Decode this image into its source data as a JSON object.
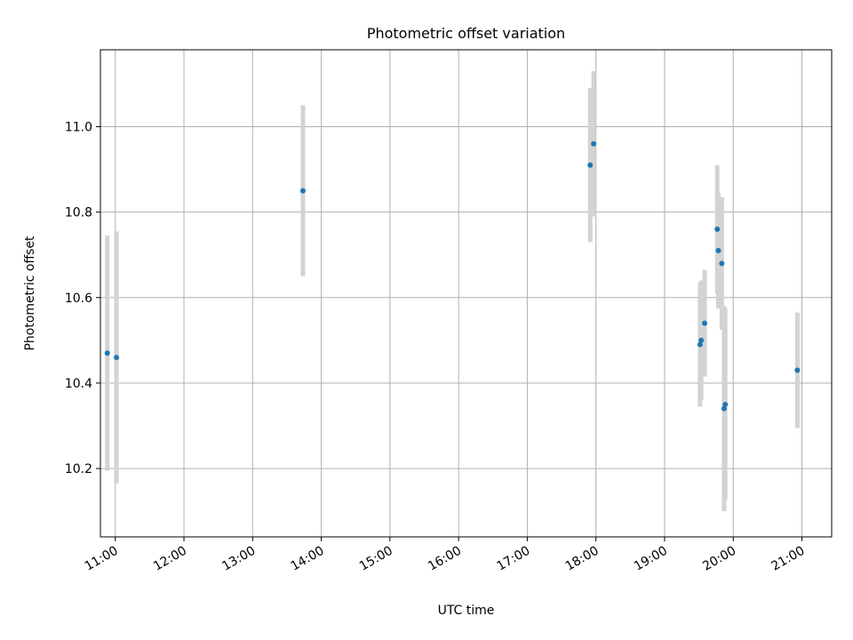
{
  "chart_data": {
    "type": "scatter",
    "title": "Photometric offset variation",
    "xlabel": "UTC time",
    "ylabel": "Photometric offset",
    "x_ticks": [
      "11:00",
      "12:00",
      "13:00",
      "14:00",
      "15:00",
      "16:00",
      "17:00",
      "18:00",
      "19:00",
      "20:00",
      "21:00"
    ],
    "y_ticks": [
      "10.2",
      "10.4",
      "10.6",
      "10.8",
      "11.0"
    ],
    "xlim": [
      "10:47",
      "21:26"
    ],
    "ylim": [
      10.04,
      11.18
    ],
    "grid": true,
    "colors": {
      "point": "#1f77b4",
      "errorbar": "#d3d3d3",
      "grid": "#b0b0b0"
    },
    "points": [
      {
        "x": "10:53",
        "y": 10.47,
        "err": 0.275
      },
      {
        "x": "11:01",
        "y": 10.46,
        "err": 0.295
      },
      {
        "x": "13:44",
        "y": 10.85,
        "err": 0.2
      },
      {
        "x": "17:55",
        "y": 10.91,
        "err": 0.18
      },
      {
        "x": "17:58",
        "y": 10.96,
        "err": 0.17
      },
      {
        "x": "19:31",
        "y": 10.49,
        "err": 0.145
      },
      {
        "x": "19:32",
        "y": 10.5,
        "err": 0.14
      },
      {
        "x": "19:35",
        "y": 10.54,
        "err": 0.125
      },
      {
        "x": "19:46",
        "y": 10.76,
        "err": 0.15
      },
      {
        "x": "19:47",
        "y": 10.71,
        "err": 0.135
      },
      {
        "x": "19:50",
        "y": 10.68,
        "err": 0.155
      },
      {
        "x": "19:52",
        "y": 10.34,
        "err": 0.24
      },
      {
        "x": "19:53",
        "y": 10.35,
        "err": 0.225
      },
      {
        "x": "20:56",
        "y": 10.43,
        "err": 0.135
      }
    ]
  }
}
